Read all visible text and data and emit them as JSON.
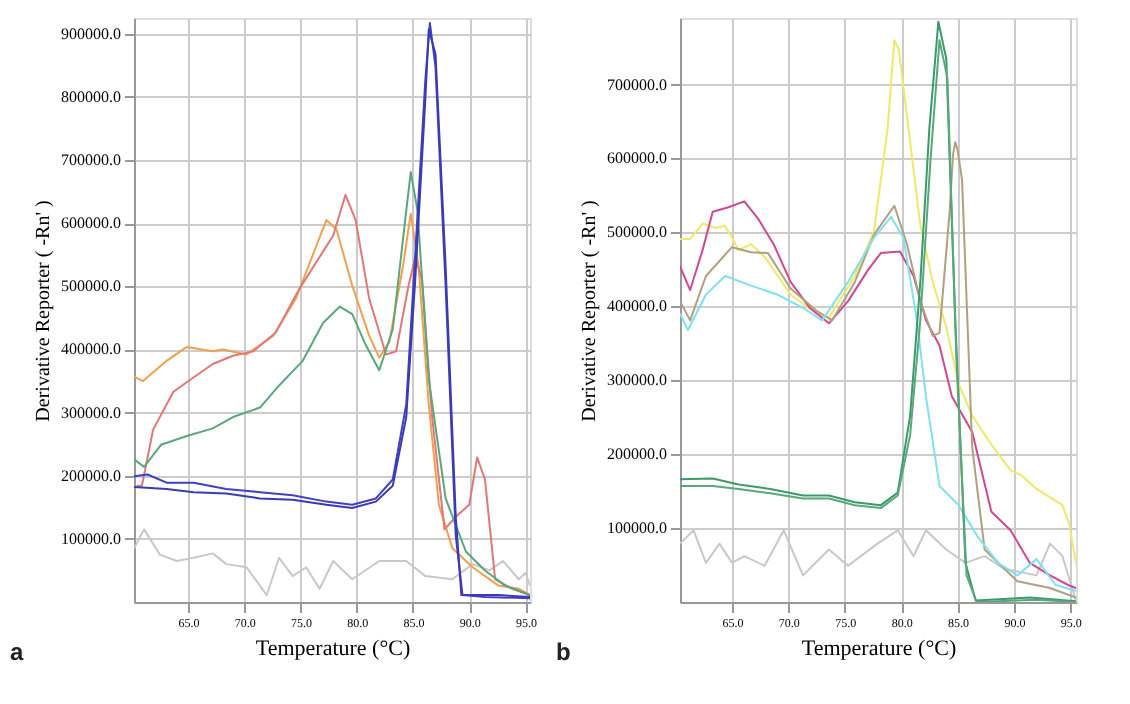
{
  "chart_data": [
    {
      "type": "line",
      "xlabel": "Temperature (°C)",
      "ylabel": "Derivative Reporter ( -Rn' )",
      "xlim": [
        60.2,
        95.4
      ],
      "ylim": [
        0,
        925000
      ],
      "xticks": [
        {
          "value": 65,
          "label": "65.0"
        },
        {
          "value": 70,
          "label": "70.0"
        },
        {
          "value": 75,
          "label": "75.0"
        },
        {
          "value": 80,
          "label": "80.0"
        },
        {
          "value": 85,
          "label": "85.0"
        },
        {
          "value": 90,
          "label": "90.0"
        },
        {
          "value": 95,
          "label": "95.0"
        }
      ],
      "yticks": [
        {
          "value": 100000,
          "label": "100000.0"
        },
        {
          "value": 200000,
          "label": "200000.0"
        },
        {
          "value": 300000,
          "label": "300000.0"
        },
        {
          "value": 400000,
          "label": "400000.0"
        },
        {
          "value": 500000,
          "label": "500000.0"
        },
        {
          "value": 600000,
          "label": "600000.0"
        },
        {
          "value": 700000,
          "label": "700000.0"
        },
        {
          "value": 800000,
          "label": "800000.0"
        },
        {
          "value": 900000,
          "label": "900000.0"
        }
      ],
      "grid": true,
      "annotations": [
        "a"
      ],
      "series": [
        {
          "color": "#c8c8c8",
          "x": [
            60.2,
            61.1,
            62.5,
            64.0,
            65.5,
            67.2,
            68.4,
            70.2,
            72.0,
            73.1,
            74.3,
            75.5,
            76.7,
            77.9,
            79.6,
            82.0,
            84.4,
            86.1,
            88.5,
            90.3,
            91.8,
            93.0,
            94.4,
            95.0,
            95.4
          ],
          "values": [
            85000,
            115000,
            75000,
            65000,
            70000,
            77000,
            60000,
            55000,
            11000,
            70000,
            41000,
            55000,
            21000,
            65000,
            36000,
            65000,
            65000,
            41000,
            36000,
            60000,
            50000,
            65000,
            36000,
            46000,
            26000
          ]
        },
        {
          "color": "#f0a050",
          "x": [
            60.2,
            61.0,
            63.1,
            64.9,
            67.2,
            68.1,
            70.2,
            72.6,
            74.6,
            76.1,
            77.3,
            78.2,
            79.6,
            81.1,
            82.0,
            82.9,
            84.1,
            84.8,
            85.5,
            86.4,
            87.3,
            88.5,
            90.3,
            92.6,
            94.4,
            95.4
          ],
          "values": [
            357000,
            350000,
            382000,
            404000,
            397000,
            400000,
            392000,
            422000,
            481000,
            550000,
            605000,
            590000,
            501000,
            422000,
            387000,
            412000,
            531000,
            615000,
            531000,
            313000,
            154000,
            85000,
            55000,
            26000,
            21000,
            11000
          ]
        },
        {
          "color": "#e07878",
          "x": [
            60.5,
            60.9,
            61.9,
            63.7,
            65.2,
            67.2,
            69.0,
            70.8,
            72.8,
            74.9,
            77.0,
            77.9,
            79.0,
            79.9,
            81.1,
            82.6,
            83.5,
            84.6,
            85.2,
            85.8,
            86.7,
            87.8,
            88.8,
            90.0,
            90.7,
            91.4,
            92.3,
            93.8,
            95.4
          ],
          "values": [
            184000,
            184000,
            273000,
            333000,
            352000,
            377000,
            390000,
            397000,
            427000,
            496000,
            555000,
            580000,
            645000,
            605000,
            481000,
            392000,
            397000,
            501000,
            546000,
            511000,
            293000,
            115000,
            135000,
            154000,
            229000,
            194000,
            36000,
            21000,
            11000
          ]
        },
        {
          "color": "#5aa87a",
          "x": [
            60.2,
            61.1,
            62.6,
            64.9,
            67.2,
            69.0,
            71.4,
            73.1,
            75.2,
            77.0,
            78.5,
            79.6,
            80.8,
            82.0,
            83.2,
            84.4,
            84.8,
            85.4,
            86.4,
            87.9,
            89.7,
            91.4,
            93.2,
            95.4
          ],
          "values": [
            226000,
            214000,
            249000,
            263000,
            275000,
            293000,
            308000,
            343000,
            382000,
            442000,
            468000,
            456000,
            407000,
            367000,
            432000,
            620000,
            681000,
            620000,
            353000,
            164000,
            80000,
            50000,
            26000,
            11000
          ]
        },
        {
          "color": "#4040c0",
          "x": [
            60.2,
            61.4,
            63.1,
            65.5,
            68.4,
            71.4,
            74.3,
            77.3,
            79.6,
            81.7,
            83.2,
            84.4,
            85.2,
            86.1,
            86.5,
            87.0,
            87.9,
            88.8,
            89.4,
            91.4,
            95.4
          ],
          "values": [
            199000,
            202000,
            189000,
            189000,
            179000,
            174000,
            169000,
            159000,
            154000,
            164000,
            194000,
            313000,
            551000,
            828000,
            917000,
            848000,
            501000,
            105000,
            11000,
            8000,
            6000
          ]
        },
        {
          "color": "#3a3ab8",
          "x": [
            60.2,
            63.1,
            65.5,
            68.4,
            71.4,
            74.3,
            77.3,
            79.6,
            81.7,
            83.2,
            84.4,
            85.2,
            86.1,
            86.4,
            87.0,
            87.9,
            88.8,
            89.3,
            92.6,
            95.4
          ],
          "values": [
            182000,
            179000,
            174000,
            172000,
            164000,
            162000,
            154000,
            149000,
            159000,
            184000,
            293000,
            511000,
            798000,
            907000,
            868000,
            531000,
            135000,
            11000,
            11000,
            8000
          ]
        }
      ]
    },
    {
      "type": "line",
      "xlabel": "Temperature (°C)",
      "ylabel": "Derivative Reporter ( -Rn' )",
      "xlim": [
        60.4,
        95.5
      ],
      "ylim": [
        0,
        790000
      ],
      "xticks": [
        {
          "value": 65,
          "label": "65.0"
        },
        {
          "value": 70,
          "label": "70.0"
        },
        {
          "value": 75,
          "label": "75.0"
        },
        {
          "value": 80,
          "label": "80.0"
        },
        {
          "value": 85,
          "label": "85.0"
        },
        {
          "value": 90,
          "label": "90.0"
        },
        {
          "value": 95,
          "label": "95.0"
        }
      ],
      "yticks": [
        {
          "value": 100000,
          "label": "100000.0"
        },
        {
          "value": 200000,
          "label": "200000.0"
        },
        {
          "value": 300000,
          "label": "300000.0"
        },
        {
          "value": 400000,
          "label": "400000.0"
        },
        {
          "value": 500000,
          "label": "500000.0"
        },
        {
          "value": 600000,
          "label": "600000.0"
        },
        {
          "value": 700000,
          "label": "700000.0"
        }
      ],
      "grid": true,
      "annotations": [
        "b"
      ],
      "series": [
        {
          "color": "#c8c8c8",
          "x": [
            60.4,
            61.6,
            62.7,
            63.9,
            65.0,
            66.1,
            67.9,
            69.6,
            71.3,
            73.6,
            75.3,
            77.9,
            79.7,
            81.1,
            82.2,
            84.0,
            85.7,
            87.4,
            89.1,
            92.0,
            93.2,
            94.3,
            95.5
          ],
          "values": [
            79000,
            97000,
            53000,
            79000,
            53000,
            62000,
            49000,
            97000,
            36000,
            71000,
            49000,
            79000,
            97000,
            62000,
            97000,
            71000,
            53000,
            62000,
            45000,
            36000,
            79000,
            62000,
            1000
          ]
        },
        {
          "color": "#f0e868",
          "x": [
            60.4,
            61.3,
            62.4,
            63.6,
            64.4,
            65.6,
            66.7,
            67.9,
            70.2,
            72.5,
            73.6,
            75.9,
            77.6,
            78.8,
            79.4,
            79.8,
            80.8,
            81.7,
            82.8,
            84.0,
            85.1,
            86.3,
            88.0,
            89.7,
            90.6,
            92.0,
            94.3,
            94.9,
            95.5
          ],
          "values": [
            491000,
            491000,
            512000,
            506000,
            509000,
            476000,
            484000,
            467000,
            416000,
            390000,
            385000,
            441000,
            502000,
            640000,
            760000,
            747000,
            622000,
            510000,
            433000,
            372000,
            295000,
            252000,
            213000,
            178000,
            172000,
            153000,
            131000,
            105000,
            53000
          ]
        },
        {
          "color": "#d04890",
          "x": [
            60.4,
            61.3,
            62.4,
            63.3,
            64.7,
            66.1,
            67.3,
            68.7,
            70.2,
            71.9,
            73.6,
            75.3,
            77.1,
            78.2,
            79.9,
            81.1,
            82.2,
            83.4,
            84.5,
            86.3,
            88.0,
            89.7,
            91.4,
            93.2,
            94.8,
            95.5
          ],
          "values": [
            454000,
            422000,
            476000,
            528000,
            534000,
            542000,
            519000,
            484000,
            433000,
            398000,
            377000,
            407000,
            450000,
            472000,
            474000,
            441000,
            381000,
            347000,
            278000,
            230000,
            122000,
            97000,
            53000,
            36000,
            23000,
            19000
          ]
        },
        {
          "color": "#b0a080",
          "x": [
            60.4,
            61.3,
            62.7,
            65.0,
            66.7,
            68.2,
            70.2,
            72.5,
            73.9,
            75.9,
            77.6,
            79.4,
            80.5,
            81.7,
            82.8,
            83.4,
            84.3,
            84.6,
            84.8,
            85.0,
            85.4,
            86.3,
            87.4,
            88.6,
            90.3,
            93.2,
            95.5
          ],
          "values": [
            407000,
            381000,
            441000,
            480000,
            473000,
            472000,
            424000,
            394000,
            381000,
            433000,
            497000,
            536000,
            485000,
            407000,
            360000,
            364000,
            528000,
            605000,
            622000,
            612000,
            571000,
            209000,
            71000,
            53000,
            28000,
            19000,
            6000
          ]
        },
        {
          "color": "#80e0f0",
          "x": [
            60.4,
            61.1,
            62.7,
            64.4,
            66.7,
            69.0,
            71.3,
            73.0,
            75.3,
            77.6,
            79.1,
            80.2,
            81.4,
            82.2,
            83.4,
            85.1,
            86.8,
            88.6,
            90.3,
            92.0,
            93.7,
            95.5
          ],
          "values": [
            390000,
            368000,
            416000,
            441000,
            428000,
            416000,
            398000,
            381000,
            433000,
            493000,
            521000,
            493000,
            381000,
            278000,
            157000,
            131000,
            88000,
            53000,
            36000,
            58000,
            23000,
            15000
          ]
        },
        {
          "color": "#3a9a6a",
          "x": [
            60.4,
            63.3,
            65.6,
            68.4,
            71.3,
            73.6,
            75.9,
            78.2,
            79.7,
            80.8,
            81.7,
            82.5,
            83.3,
            84.0,
            84.8,
            85.7,
            86.6,
            91.4,
            95.5
          ],
          "values": [
            166000,
            167000,
            159000,
            153000,
            144000,
            144000,
            135000,
            131000,
            148000,
            252000,
            433000,
            640000,
            785000,
            735000,
            381000,
            53000,
            2000,
            6000,
            1000
          ]
        },
        {
          "color": "#58a878",
          "x": [
            60.4,
            63.3,
            65.6,
            68.4,
            71.3,
            73.6,
            75.9,
            78.2,
            79.7,
            80.8,
            81.7,
            82.6,
            83.4,
            84.1,
            84.9,
            85.8,
            86.7,
            92.0,
            95.5
          ],
          "values": [
            157000,
            157000,
            153000,
            147000,
            140000,
            140000,
            131000,
            127000,
            144000,
            226000,
            381000,
            597000,
            760000,
            709000,
            329000,
            36000,
            0,
            3000,
            0
          ]
        }
      ]
    }
  ]
}
